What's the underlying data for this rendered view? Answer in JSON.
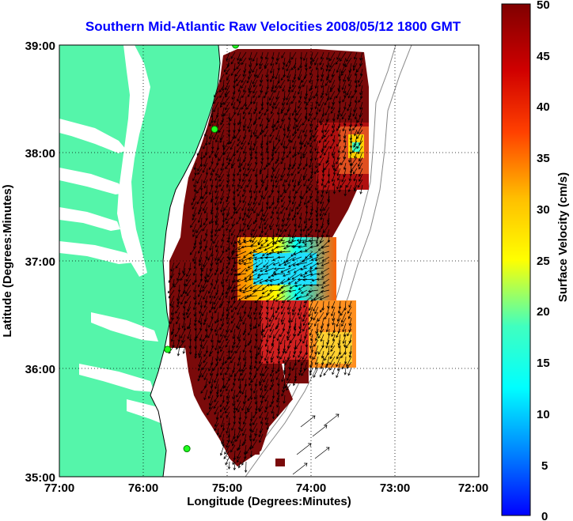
{
  "title": "Southern Mid-Atlantic Raw Velocities 2008/05/12 1800 GMT",
  "xlabel": "Longitude (Degrees:Minutes)",
  "ylabel": "Latitude (Degrees:Minutes)",
  "x_ticks": [
    "77:00",
    "76:00",
    "75:00",
    "74:00",
    "73:00",
    "72:00"
  ],
  "y_ticks": [
    "39:00",
    "38:00",
    "37:00",
    "36:00",
    "35:00"
  ],
  "colorbar": {
    "label": "Surface Velocity (cm/s)",
    "ticks": [
      "50",
      "45",
      "40",
      "35",
      "30",
      "25",
      "20",
      "15",
      "10",
      "5",
      "0"
    ],
    "min": 0,
    "max": 50
  },
  "colors": {
    "title": "#0000ff",
    "land": "#55f5aa",
    "water": "#ffffff",
    "high_velocity": "#7a0000",
    "grid": "#000000"
  },
  "map": {
    "lon_range": [
      -77,
      -72
    ],
    "lat_range": [
      35,
      39
    ],
    "stations": [
      {
        "lon": -74.9,
        "lat": 39.0
      },
      {
        "lon": -75.15,
        "lat": 38.22
      },
      {
        "lon": -75.71,
        "lat": 36.18
      },
      {
        "lon": -75.48,
        "lat": 35.26
      }
    ]
  }
}
